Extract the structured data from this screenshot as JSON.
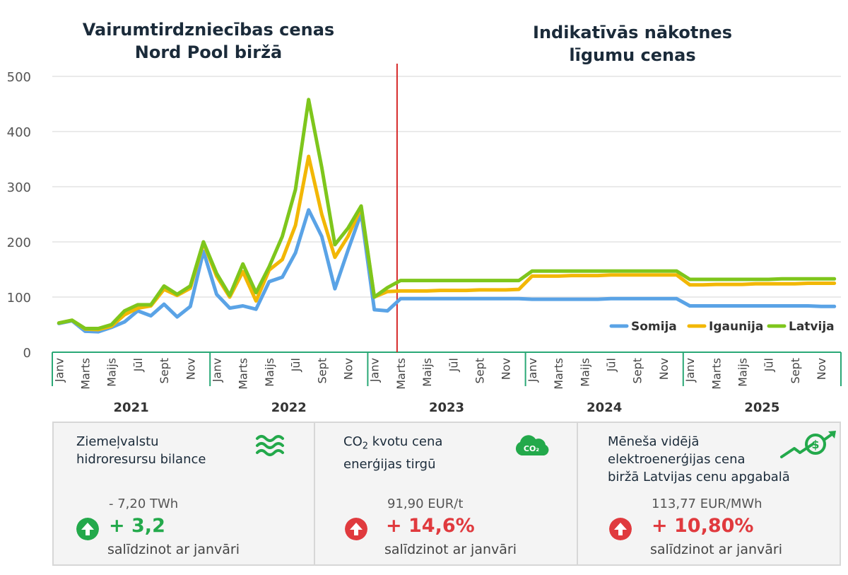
{
  "titles": {
    "left": [
      "Vairumtirdzniecības cenas",
      "Nord Pool biržā"
    ],
    "right": [
      "Indikatīvās nākotnes",
      "līgumu cenas"
    ]
  },
  "chart_data": {
    "type": "line",
    "ylim": [
      0,
      500
    ],
    "y_ticks": [
      0,
      100,
      200,
      300,
      400,
      500
    ],
    "grid": true,
    "legend_position": "bottom-right",
    "divider_after_month_index": 26,
    "month_ticks": [
      "Janv",
      "Marts",
      "Maijs",
      "Jūl",
      "Sept",
      "Nov"
    ],
    "years": [
      "2021",
      "2022",
      "2023",
      "2024",
      "2025"
    ],
    "series": [
      {
        "name": "Somija",
        "color": "#5aa3e6",
        "values": [
          52,
          57,
          38,
          37,
          45,
          55,
          75,
          66,
          87,
          64,
          83,
          183,
          105,
          80,
          84,
          78,
          128,
          136,
          180,
          258,
          210,
          115,
          185,
          252,
          77,
          75,
          97,
          97,
          97,
          97,
          97,
          97,
          97,
          97,
          97,
          97,
          96,
          96,
          96,
          96,
          96,
          96,
          97,
          97,
          97,
          97,
          97,
          97,
          84,
          84,
          84,
          84,
          84,
          84,
          84,
          84,
          84,
          84,
          83,
          83
        ]
      },
      {
        "name": "Igaunija",
        "color": "#f2b705",
        "values": [
          53,
          58,
          42,
          41,
          47,
          68,
          80,
          84,
          114,
          103,
          116,
          198,
          138,
          100,
          146,
          93,
          149,
          168,
          230,
          355,
          250,
          172,
          210,
          262,
          100,
          110,
          111,
          111,
          111,
          112,
          112,
          112,
          113,
          113,
          113,
          114,
          138,
          138,
          138,
          139,
          139,
          139,
          140,
          140,
          140,
          140,
          140,
          140,
          122,
          122,
          123,
          123,
          123,
          124,
          124,
          124,
          124,
          125,
          125,
          125
        ]
      },
      {
        "name": "Latvija",
        "color": "#7ec61c",
        "values": [
          53,
          58,
          43,
          43,
          50,
          75,
          86,
          86,
          120,
          105,
          120,
          200,
          143,
          103,
          160,
          108,
          155,
          210,
          295,
          458,
          335,
          195,
          225,
          265,
          100,
          117,
          130,
          130,
          130,
          130,
          130,
          130,
          130,
          130,
          130,
          130,
          147,
          147,
          147,
          147,
          147,
          147,
          147,
          147,
          147,
          147,
          147,
          147,
          132,
          132,
          132,
          132,
          132,
          132,
          132,
          133,
          133,
          133,
          133,
          133
        ]
      }
    ]
  },
  "panels": [
    {
      "title_lines": [
        "Ziemeļvalstu",
        "hidroresursu bilance"
      ],
      "value": "- 7,20 TWh",
      "change": "+ 3,2",
      "compare": "salīdzinot ar janvāri",
      "status_color": "#23a94b",
      "icon": "waves-icon"
    },
    {
      "title_pre": "CO",
      "title_sub": "2",
      "title_post": " kvotu cena",
      "title_line2": "enerģijas tirgū",
      "value": "91,90 EUR/t",
      "change": "+ 14,6%",
      "compare": "salīdzinot ar janvāri",
      "status_color": "#e03a3e",
      "icon": "co2-cloud-icon",
      "icon_label": "CO₂"
    },
    {
      "title_lines": [
        "Mēneša vidējā",
        "elektroenerģijas cena",
        "biržā Latvijas cenu apgabalā"
      ],
      "value": "113,77 EUR/MWh",
      "change": "+ 10,80%",
      "compare": "salīdzinot ar janvāri",
      "status_color": "#e03a3e",
      "icon": "money-growth-icon"
    }
  ],
  "colors": {
    "green": "#23a94b",
    "red": "#e03a3e",
    "axis": "#2aa876",
    "divider": "#d62828"
  }
}
